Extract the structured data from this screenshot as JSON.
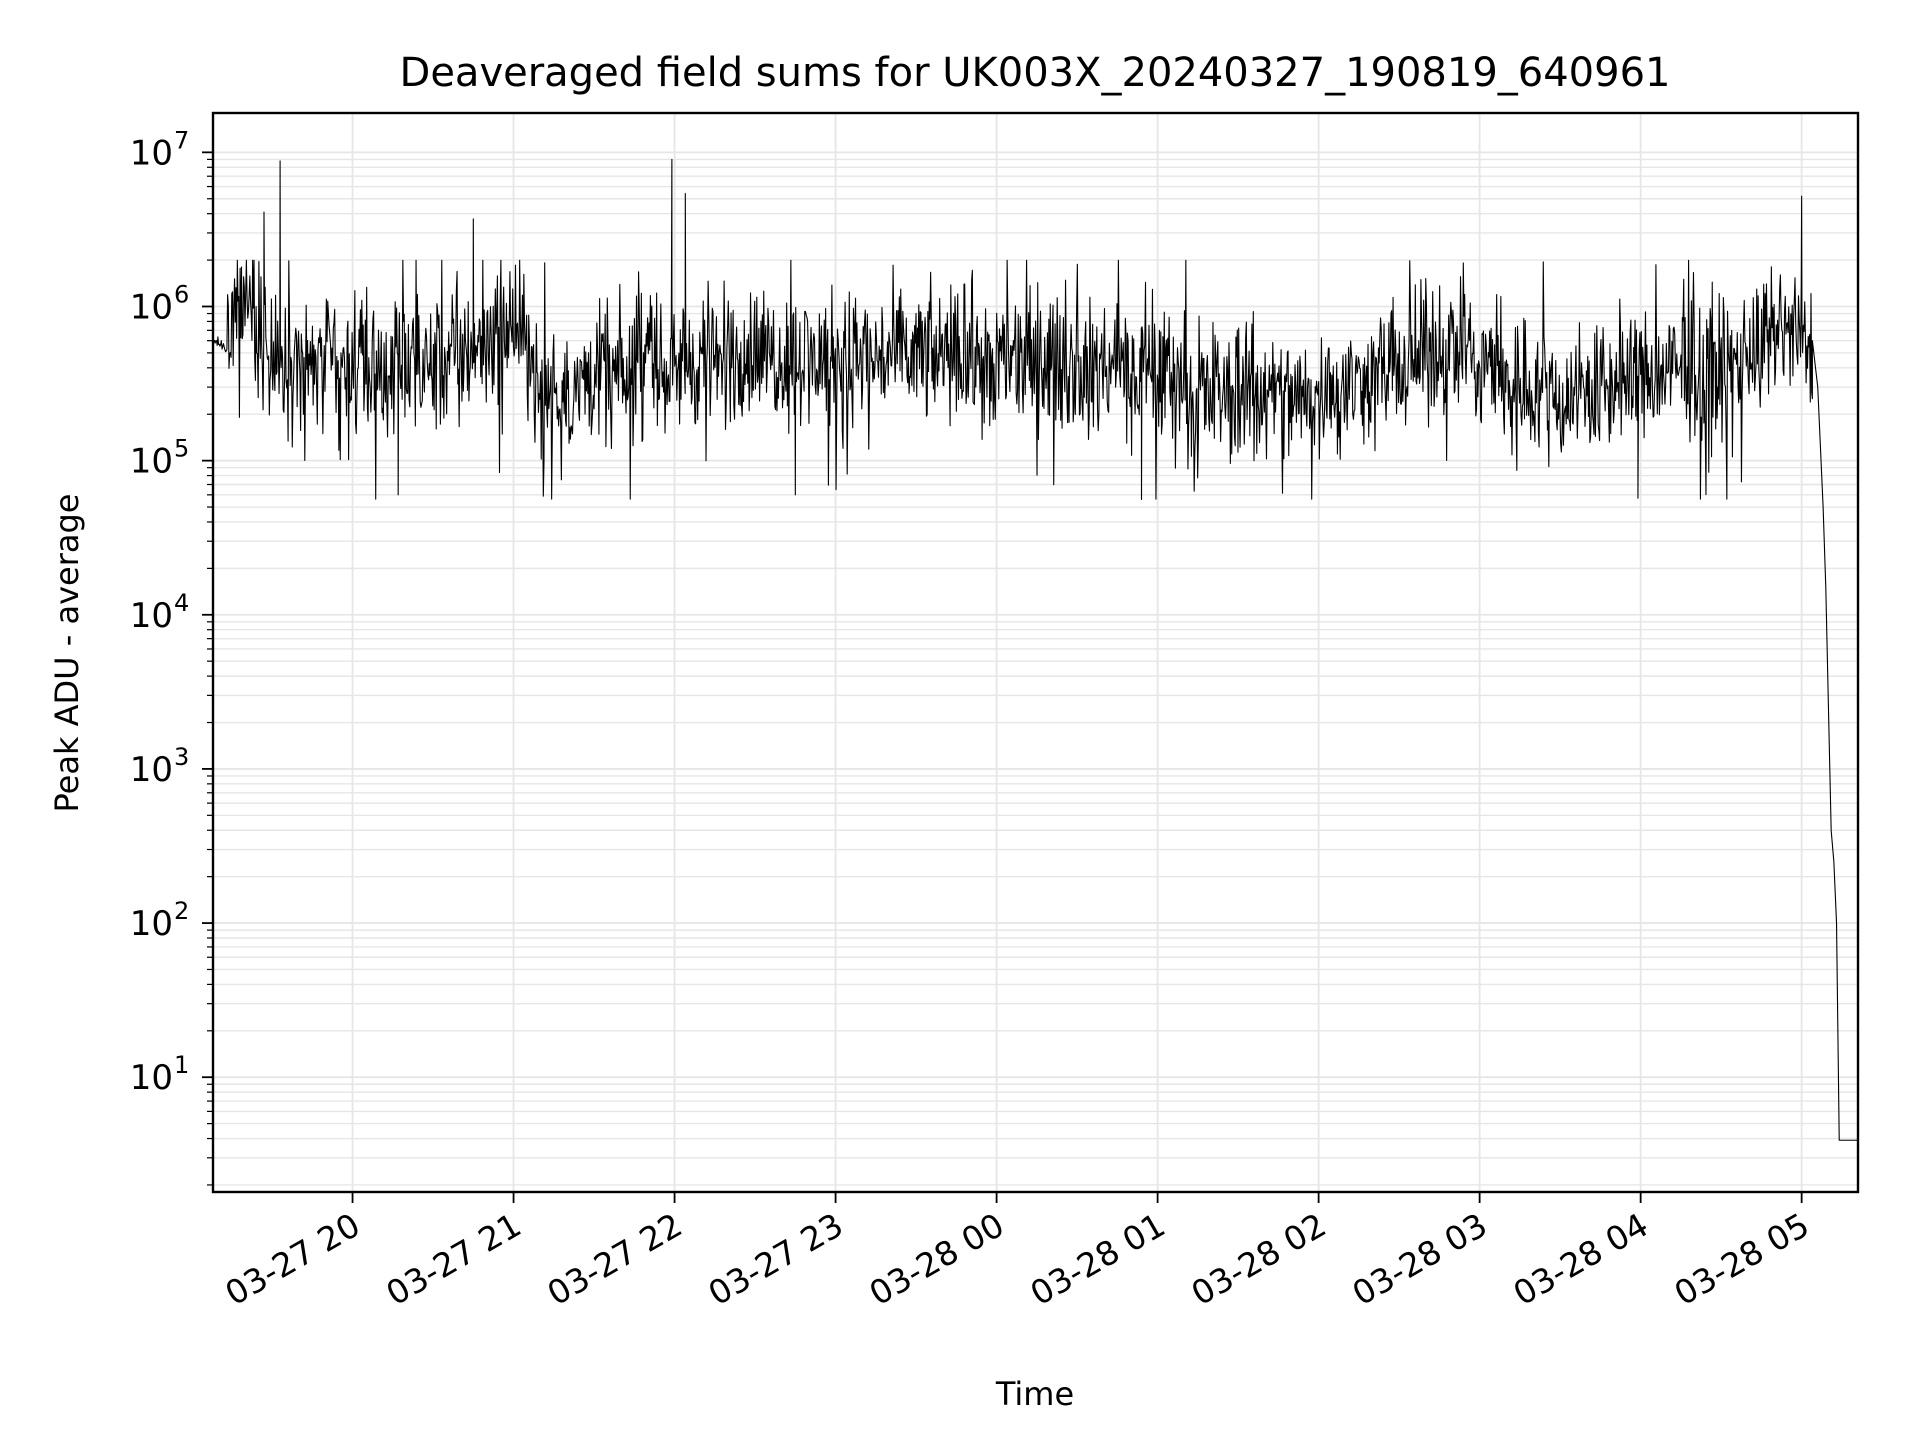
{
  "chart_data": {
    "type": "line",
    "title": "Deaveraged field sums for UK003X_20240327_190819_640961",
    "xlabel": "Time",
    "ylabel": "Peak ADU - average",
    "yscale": "log",
    "ylim": [
      1.8,
      18000000
    ],
    "xlim": [
      "2024-03-27 19:08",
      "2024-03-28 05:21"
    ],
    "grid": true,
    "grid_color": "#e6e6e6",
    "line_color": "#000000",
    "x_ticks": [
      {
        "t": "2024-03-27 20:00",
        "label": "03-27 20"
      },
      {
        "t": "2024-03-27 21:00",
        "label": "03-27 21"
      },
      {
        "t": "2024-03-27 22:00",
        "label": "03-27 22"
      },
      {
        "t": "2024-03-27 23:00",
        "label": "03-27 23"
      },
      {
        "t": "2024-03-28 00:00",
        "label": "03-28 00"
      },
      {
        "t": "2024-03-28 01:00",
        "label": "03-28 01"
      },
      {
        "t": "2024-03-28 02:00",
        "label": "03-28 02"
      },
      {
        "t": "2024-03-28 03:00",
        "label": "03-28 03"
      },
      {
        "t": "2024-03-28 04:00",
        "label": "03-28 04"
      },
      {
        "t": "2024-03-28 05:00",
        "label": "03-28 05"
      }
    ],
    "y_ticks": [
      {
        "value": 10,
        "base": "10",
        "exp": "1"
      },
      {
        "value": 100,
        "base": "10",
        "exp": "2"
      },
      {
        "value": 1000,
        "base": "10",
        "exp": "3"
      },
      {
        "value": 10000,
        "base": "10",
        "exp": "4"
      },
      {
        "value": 100000,
        "base": "10",
        "exp": "5"
      },
      {
        "value": 1000000,
        "base": "10",
        "exp": "6"
      },
      {
        "value": 10000000,
        "base": "10",
        "exp": "7"
      }
    ],
    "series": [
      {
        "baseline_points": [
          {
            "t": "2024-03-27 19:08",
            "v": 600000
          },
          {
            "t": "2024-03-27 19:13",
            "v": 550000
          },
          {
            "t": "2024-03-27 19:20",
            "v": 1100000
          },
          {
            "t": "2024-03-27 19:30",
            "v": 450000
          },
          {
            "t": "2024-03-27 20:00",
            "v": 380000
          },
          {
            "t": "2024-03-27 20:30",
            "v": 400000
          },
          {
            "t": "2024-03-27 21:00",
            "v": 800000
          },
          {
            "t": "2024-03-27 21:10",
            "v": 300000
          },
          {
            "t": "2024-03-27 22:00",
            "v": 420000
          },
          {
            "t": "2024-03-27 22:30",
            "v": 500000
          },
          {
            "t": "2024-03-27 23:00",
            "v": 450000
          },
          {
            "t": "2024-03-27 23:30",
            "v": 480000
          },
          {
            "t": "2024-03-28 00:00",
            "v": 450000
          },
          {
            "t": "2024-03-28 00:30",
            "v": 420000
          },
          {
            "t": "2024-03-28 01:00",
            "v": 350000
          },
          {
            "t": "2024-03-28 01:30",
            "v": 250000
          },
          {
            "t": "2024-03-28 02:00",
            "v": 250000
          },
          {
            "t": "2024-03-28 02:30",
            "v": 400000
          },
          {
            "t": "2024-03-28 02:50",
            "v": 600000
          },
          {
            "t": "2024-03-28 03:00",
            "v": 450000
          },
          {
            "t": "2024-03-28 03:30",
            "v": 250000
          },
          {
            "t": "2024-03-28 04:00",
            "v": 350000
          },
          {
            "t": "2024-03-28 04:30",
            "v": 400000
          },
          {
            "t": "2024-03-28 04:55",
            "v": 700000
          },
          {
            "t": "2024-03-28 05:03",
            "v": 500000
          }
        ],
        "spikes": [
          {
            "t": "2024-03-27 19:27",
            "v": 4100000
          },
          {
            "t": "2024-03-27 19:33",
            "v": 8800000
          },
          {
            "t": "2024-03-27 20:45",
            "v": 3700000
          },
          {
            "t": "2024-03-27 21:59",
            "v": 9000000
          },
          {
            "t": "2024-03-27 22:04",
            "v": 5400000
          },
          {
            "t": "2024-03-28 05:00",
            "v": 5200000
          },
          {
            "t": "2024-03-27 20:17",
            "v": 60000
          },
          {
            "t": "2024-03-27 22:45",
            "v": 60000
          },
          {
            "t": "2024-03-28 00:54",
            "v": 56000
          },
          {
            "t": "2024-03-28 03:59",
            "v": 57000
          }
        ],
        "falloff": [
          {
            "t": "2024-03-28 05:04",
            "v": 600000
          },
          {
            "t": "2024-03-28 05:06",
            "v": 300000
          },
          {
            "t": "2024-03-28 05:08",
            "v": 50000
          },
          {
            "t": "2024-03-28 05:09",
            "v": 15000
          },
          {
            "t": "2024-03-28 05:11",
            "v": 400
          },
          {
            "t": "2024-03-28 05:12",
            "v": 250
          },
          {
            "t": "2024-03-28 05:13",
            "v": 100
          },
          {
            "t": "2024-03-28 05:14",
            "v": 3.9
          },
          {
            "t": "2024-03-28 05:21",
            "v": 3.9
          }
        ]
      }
    ]
  }
}
